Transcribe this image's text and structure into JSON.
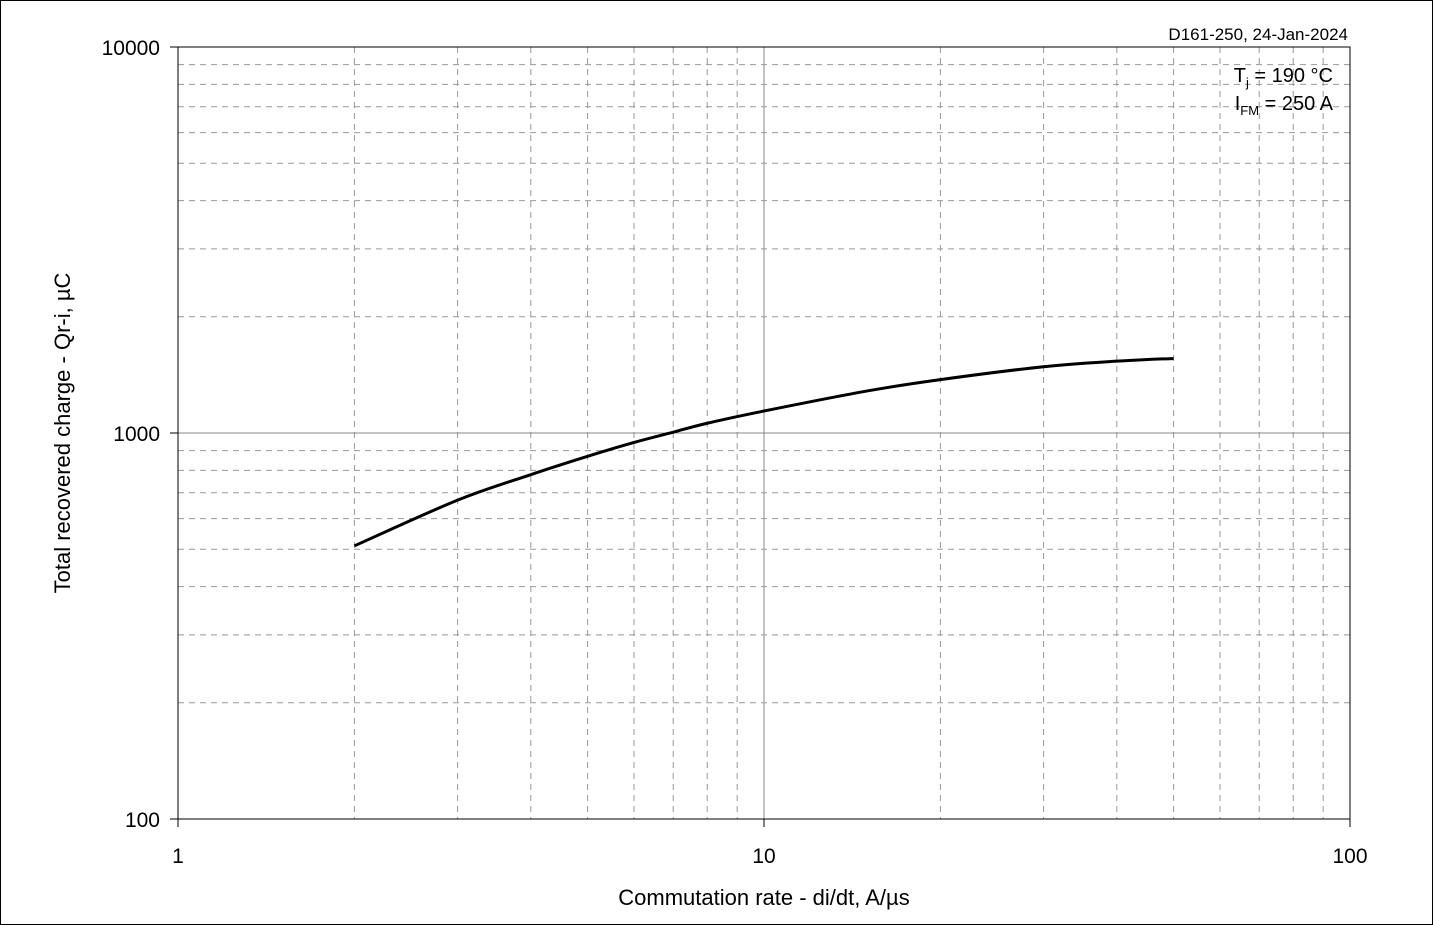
{
  "chart_data": {
    "type": "line",
    "xscale": "log",
    "yscale": "log",
    "xlim": [
      1,
      100
    ],
    "ylim": [
      100,
      10000
    ],
    "xlabel": "Commutation rate - di/dt, A/µs",
    "ylabel": "Total recovered charge - Qr-i, µC",
    "x_ticks": [
      "1",
      "10",
      "100"
    ],
    "y_ticks": [
      "100",
      "1000",
      "10000"
    ],
    "grid": "dashed minor, solid major",
    "annotation": "D161-250, 24-Jan-2024",
    "conditions": [
      {
        "symbol": "T",
        "sub": "j",
        "rest": " = 190 °C"
      },
      {
        "symbol": "I",
        "sub": "FM",
        "rest": " = 250 A"
      }
    ],
    "series": [
      {
        "color": "#000000",
        "x": [
          2,
          3,
          4,
          5,
          6,
          7,
          8,
          10,
          15,
          20,
          30,
          40,
          50
        ],
        "y": [
          510,
          670,
          780,
          870,
          945,
          1005,
          1060,
          1140,
          1285,
          1375,
          1485,
          1535,
          1560
        ]
      }
    ]
  }
}
